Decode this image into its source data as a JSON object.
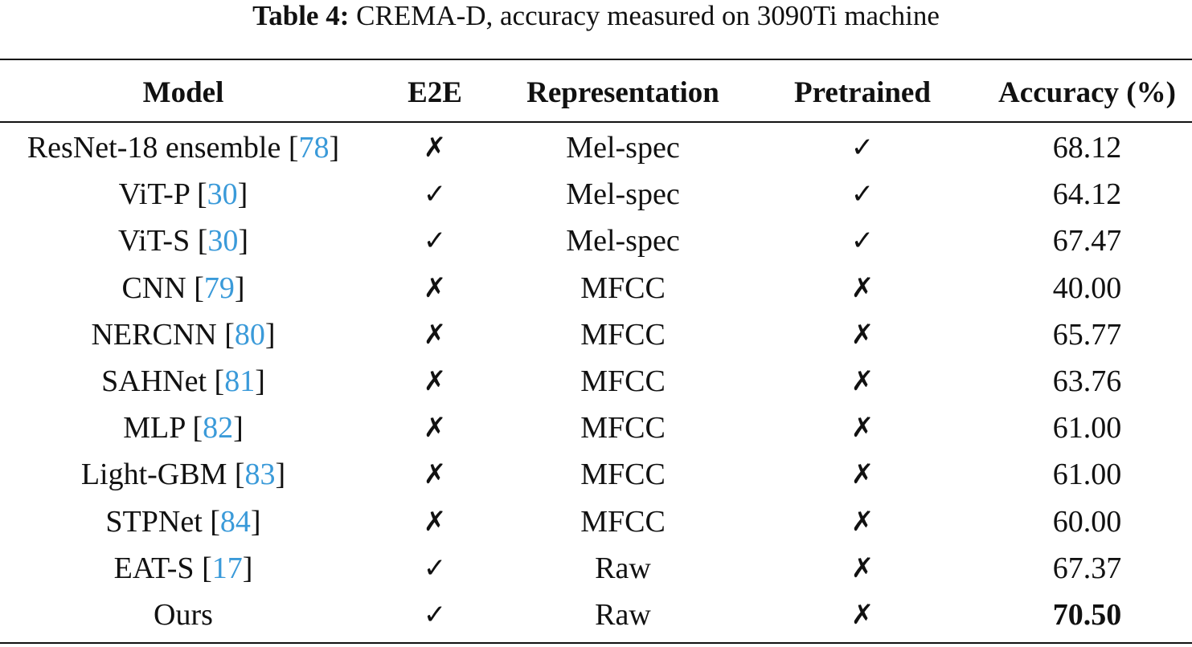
{
  "caption": {
    "label": "Table 4:",
    "text": "CREMA-D, accuracy measured on 3090Ti machine"
  },
  "columns": [
    "Model",
    "E2E",
    "Representation",
    "Pretrained",
    "Accuracy (%)"
  ],
  "rows": [
    {
      "model": "ResNet-18 ensemble",
      "ref": "78",
      "e2e": "✗",
      "representation": "Mel-spec",
      "pretrained": "✓",
      "accuracy": "68.12"
    },
    {
      "model": "ViT-P",
      "ref": "30",
      "e2e": "✓",
      "representation": "Mel-spec",
      "pretrained": "✓",
      "accuracy": "64.12"
    },
    {
      "model": "ViT-S",
      "ref": "30",
      "e2e": "✓",
      "representation": "Mel-spec",
      "pretrained": "✓",
      "accuracy": "67.47"
    },
    {
      "model": "CNN",
      "ref": "79",
      "e2e": "✗",
      "representation": "MFCC",
      "pretrained": "✗",
      "accuracy": "40.00"
    },
    {
      "model": "NERCNN",
      "ref": "80",
      "e2e": "✗",
      "representation": "MFCC",
      "pretrained": "✗",
      "accuracy": "65.77"
    },
    {
      "model": "SAHNet",
      "ref": "81",
      "e2e": "✗",
      "representation": "MFCC",
      "pretrained": "✗",
      "accuracy": "63.76"
    },
    {
      "model": "MLP",
      "ref": "82",
      "e2e": "✗",
      "representation": "MFCC",
      "pretrained": "✗",
      "accuracy": "61.00"
    },
    {
      "model": "Light-GBM",
      "ref": "83",
      "e2e": "✗",
      "representation": "MFCC",
      "pretrained": "✗",
      "accuracy": "61.00"
    },
    {
      "model": "STPNet",
      "ref": "84",
      "e2e": "✗",
      "representation": "MFCC",
      "pretrained": "✗",
      "accuracy": "60.00"
    },
    {
      "model": "EAT-S",
      "ref": "17",
      "e2e": "✓",
      "representation": "Raw",
      "pretrained": "✗",
      "accuracy": "67.37"
    },
    {
      "model": "Ours",
      "ref": "",
      "e2e": "✓",
      "representation": "Raw",
      "pretrained": "✗",
      "accuracy": "70.50",
      "bold": true
    }
  ],
  "colors": {
    "citation": "#3a9ad9",
    "text": "#111111"
  }
}
